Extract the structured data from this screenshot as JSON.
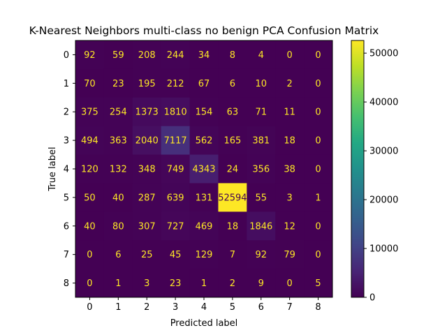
{
  "chart_data": {
    "type": "heatmap",
    "title": "K-Nearest Neighbors multi-class no benign PCA Confusion Matrix",
    "xlabel": "Predicted label",
    "ylabel": "True label",
    "x_categories": [
      "0",
      "1",
      "2",
      "3",
      "4",
      "5",
      "6",
      "7",
      "8"
    ],
    "y_categories": [
      "0",
      "1",
      "2",
      "3",
      "4",
      "5",
      "6",
      "7",
      "8"
    ],
    "matrix": [
      [
        92,
        59,
        208,
        244,
        34,
        8,
        4,
        0,
        0
      ],
      [
        70,
        23,
        195,
        212,
        67,
        6,
        10,
        2,
        0
      ],
      [
        375,
        254,
        1373,
        1810,
        154,
        63,
        71,
        11,
        0
      ],
      [
        494,
        363,
        2040,
        7117,
        562,
        165,
        381,
        18,
        0
      ],
      [
        120,
        132,
        348,
        749,
        4343,
        24,
        356,
        38,
        0
      ],
      [
        50,
        40,
        287,
        639,
        131,
        52594,
        55,
        3,
        1
      ],
      [
        40,
        80,
        307,
        727,
        469,
        18,
        1846,
        12,
        0
      ],
      [
        0,
        6,
        25,
        45,
        129,
        7,
        92,
        79,
        0
      ],
      [
        0,
        1,
        3,
        23,
        1,
        2,
        9,
        0,
        5
      ]
    ],
    "colormap": "viridis",
    "colorbar": {
      "range": [
        0,
        52594
      ],
      "ticks": [
        0,
        10000,
        20000,
        30000,
        40000,
        50000
      ]
    },
    "text_color_low": "#fde725",
    "text_color_high": "#440154"
  }
}
